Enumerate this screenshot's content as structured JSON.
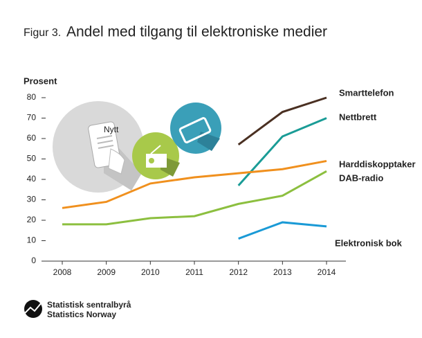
{
  "chart_data": {
    "type": "line",
    "figure_label": "Figur 3.",
    "title": "Andel med tilgang til elektroniske medier",
    "y_label": "Prosent",
    "icon_text": "Nytt",
    "categories": [
      "2008",
      "2009",
      "2010",
      "2011",
      "2012",
      "2013",
      "2014"
    ],
    "series": [
      {
        "name": "Smarttelefon",
        "color": "#4a3022",
        "values": [
          null,
          null,
          null,
          null,
          57,
          73,
          80
        ]
      },
      {
        "name": "Nettbrett",
        "color": "#1a9c96",
        "values": [
          null,
          null,
          null,
          null,
          37,
          61,
          70
        ]
      },
      {
        "name": "Harddiskopptaker",
        "color": "#f0901e",
        "values": [
          26,
          29,
          38,
          41,
          43,
          45,
          49
        ]
      },
      {
        "name": "DAB-radio",
        "color": "#8cbf3f",
        "values": [
          18,
          18,
          21,
          22,
          28,
          32,
          44
        ]
      },
      {
        "name": "Elektronisk bok",
        "color": "#1a9ad6",
        "values": [
          null,
          null,
          null,
          null,
          11,
          19,
          17
        ]
      }
    ],
    "ylim": [
      0,
      80
    ],
    "yticks": [
      0,
      10,
      20,
      30,
      40,
      50,
      60,
      70,
      80
    ],
    "source": {
      "name": "Statistisk sentralbyrå",
      "name_en": "Statistics Norway"
    }
  }
}
